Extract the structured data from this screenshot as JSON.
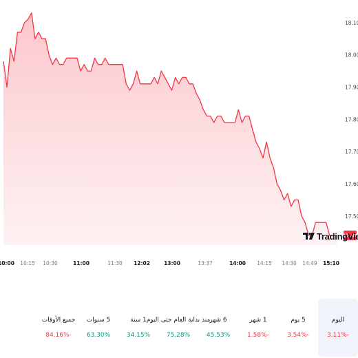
{
  "chart_data": {
    "type": "area",
    "y_ticks": [
      17.5,
      17.6,
      17.7,
      17.8,
      17.9,
      18.0,
      18.1
    ],
    "y_tick_labels": [
      "17.50",
      "17.60",
      "17.70",
      "17.80",
      "17.90",
      "18.00",
      "18.10"
    ],
    "ylim": [
      17.41,
      18.17
    ],
    "x_tick_labels": [
      {
        "label": "10:00",
        "bold": true
      },
      {
        "label": "10:15",
        "bold": false
      },
      {
        "label": "10:30",
        "bold": false
      },
      {
        "label": "11:00",
        "bold": true
      },
      {
        "label": "11:30",
        "bold": false
      },
      {
        "label": "12:02",
        "bold": true
      },
      {
        "label": "13:00",
        "bold": true
      },
      {
        "label": "13:37",
        "bold": false
      },
      {
        "label": "14:00",
        "bold": true
      },
      {
        "label": "14:15",
        "bold": false
      },
      {
        "label": "14:30",
        "bold": false
      },
      {
        "label": "14:49",
        "bold": false
      },
      {
        "label": "15:10",
        "bold": true
      }
    ],
    "values": [
      17.98,
      17.9,
      18.02,
      17.98,
      18.07,
      18.07,
      18.1,
      18.11,
      18.13,
      18.05,
      18.07,
      18.05,
      18.05,
      18.0,
      17.97,
      17.99,
      17.97,
      17.97,
      17.99,
      17.99,
      17.99,
      17.99,
      17.95,
      17.97,
      17.95,
      17.95,
      17.99,
      17.97,
      17.97,
      17.99,
      17.97,
      17.97,
      17.97,
      17.97,
      17.97,
      17.91,
      17.89,
      17.91,
      17.95,
      17.91,
      17.91,
      17.91,
      17.91,
      17.93,
      17.91,
      17.95,
      17.93,
      17.91,
      17.89,
      17.93,
      17.91,
      17.93,
      17.93,
      17.91,
      17.91,
      17.88,
      17.86,
      17.83,
      17.81,
      17.81,
      17.79,
      17.81,
      17.81,
      17.79,
      17.79,
      17.79,
      17.79,
      17.83,
      17.79,
      17.81,
      17.81,
      17.77,
      17.73,
      17.71,
      17.68,
      17.73,
      17.68,
      17.65,
      17.6,
      17.58,
      17.55,
      17.57,
      17.53,
      17.55,
      17.55,
      17.5,
      17.48,
      17.44,
      17.44,
      17.48,
      17.48,
      17.48,
      17.48,
      17.44,
      17.44,
      17.44
    ],
    "last_value_label": "17.44",
    "line_color": "#f23645",
    "fill_color": "#fcd3d7"
  },
  "watermark": {
    "text": "TradingView"
  },
  "performance": [
    {
      "label": "اليوم",
      "value": "3.11%-",
      "direction": "down",
      "selected": true
    },
    {
      "label": "5 يوم",
      "value": "3.54%-",
      "direction": "down",
      "selected": false
    },
    {
      "label": "1 شهر",
      "value": "1.58%-",
      "direction": "down",
      "selected": false
    },
    {
      "label": "6 شهر",
      "value": "45.53%",
      "direction": "up",
      "selected": false
    },
    {
      "label": "منذ بداية العام حتى اليوم",
      "value": "75.28%",
      "direction": "up",
      "selected": false
    },
    {
      "label": "1 سنة",
      "value": "34.15%",
      "direction": "up",
      "selected": false
    },
    {
      "label": "5 سنوات",
      "value": "63.30%",
      "direction": "up",
      "selected": false
    },
    {
      "label": "جميع الأوقات",
      "value": "84.16%-",
      "direction": "down",
      "selected": false
    }
  ]
}
